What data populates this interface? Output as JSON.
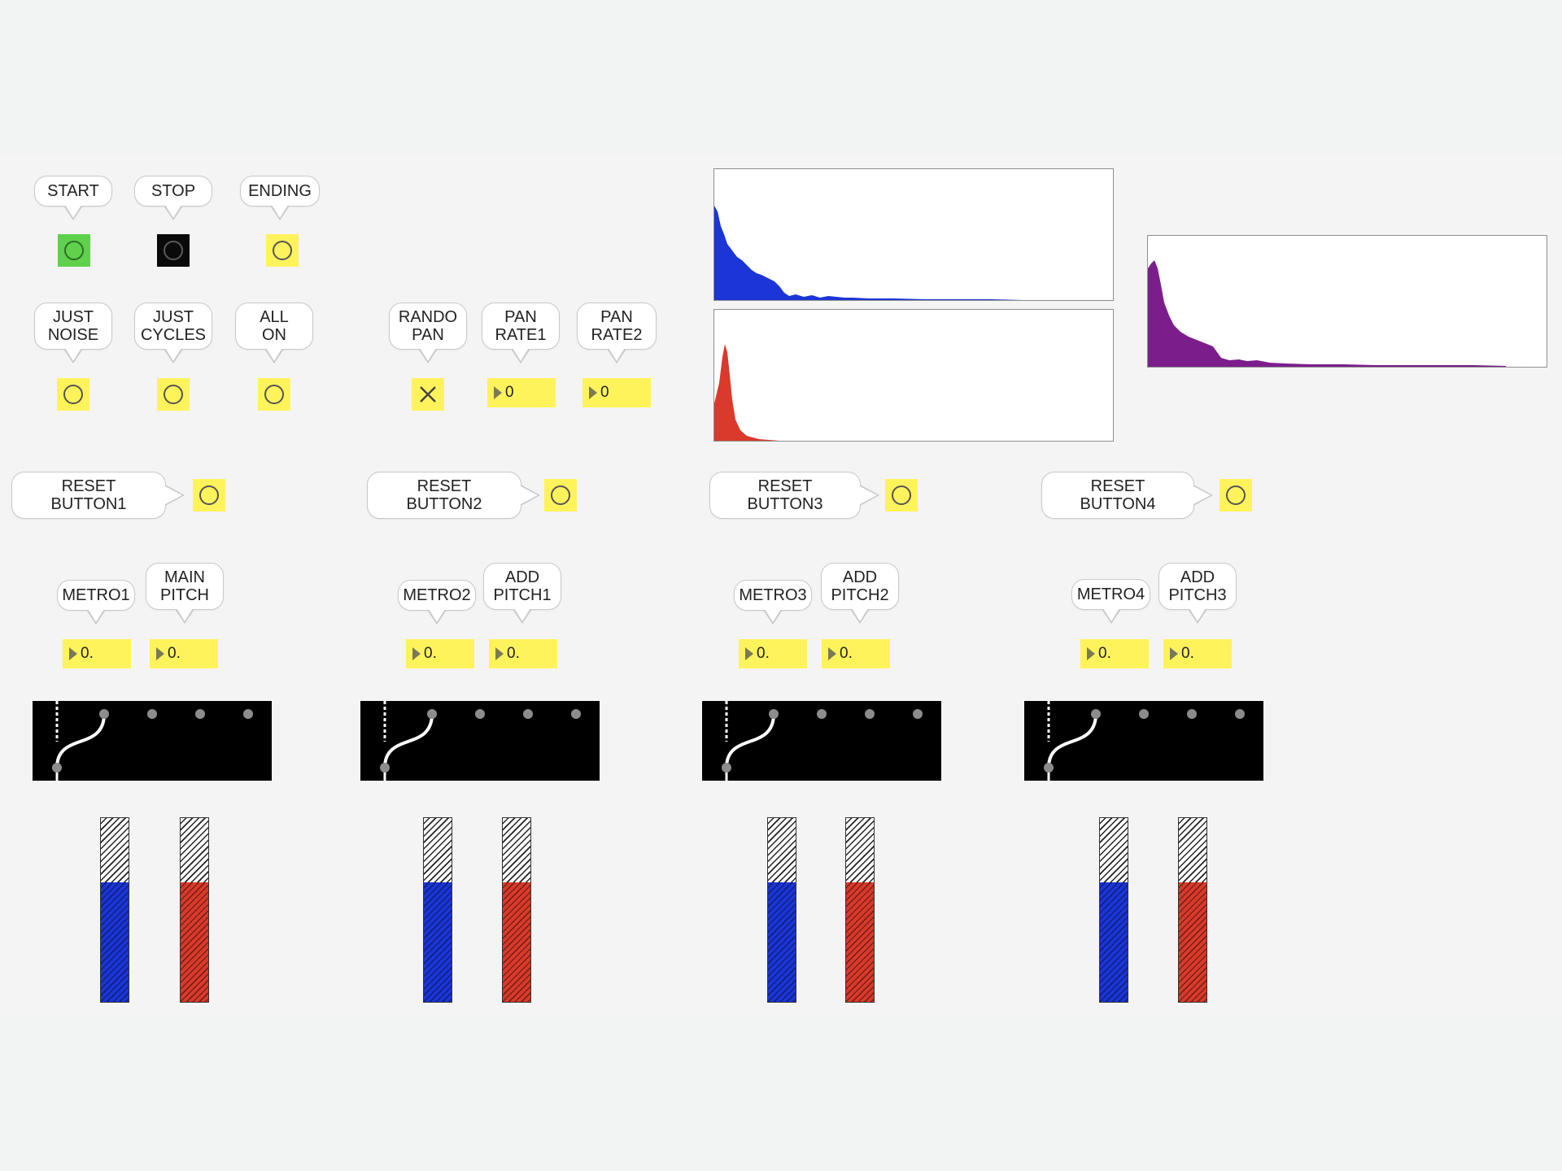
{
  "transport": [
    {
      "label": "START",
      "state": "active",
      "color": "#5fd14b"
    },
    {
      "label": "STOP",
      "state": "inactive",
      "color": "#0a0a0a"
    },
    {
      "label": "ENDING",
      "state": "idle",
      "color": "#fff35c"
    }
  ],
  "modes": [
    {
      "label": "JUST\nNOISE"
    },
    {
      "label": "JUST\nCYCLES"
    },
    {
      "label": "ALL\nON"
    }
  ],
  "pan": {
    "rando_label": "RANDO\nPAN",
    "rando_toggle_on": true,
    "rate1_label": "PAN\nRATE1",
    "rate1_value": "0",
    "rate2_label": "PAN\nRATE2",
    "rate2_value": "0"
  },
  "colors": {
    "accent_yellow": "#fff35c",
    "blue": "#1b35d6",
    "red": "#d93a2b",
    "purple": "#7b1e8c"
  },
  "channels": [
    {
      "reset_label": "RESET\nBUTTON1",
      "metro_label": "METRO1",
      "metro_value": "0.",
      "pitch_label": "MAIN\nPITCH",
      "pitch_value": "0.",
      "meter_left_level": 0.65,
      "meter_right_level": 0.65
    },
    {
      "reset_label": "RESET\nBUTTON2",
      "metro_label": "METRO2",
      "metro_value": "0.",
      "pitch_label": "ADD\nPITCH1",
      "pitch_value": "0.",
      "meter_left_level": 0.65,
      "meter_right_level": 0.65
    },
    {
      "reset_label": "RESET\nBUTTON3",
      "metro_label": "METRO3",
      "metro_value": "0.",
      "pitch_label": "ADD\nPITCH2",
      "pitch_value": "0.",
      "meter_left_level": 0.65,
      "meter_right_level": 0.65
    },
    {
      "reset_label": "RESET\nBUTTON4",
      "metro_label": "METRO4",
      "metro_value": "0.",
      "pitch_label": "ADD\nPITCH3",
      "pitch_value": "0.",
      "meter_left_level": 0.65,
      "meter_right_level": 0.65
    }
  ]
}
